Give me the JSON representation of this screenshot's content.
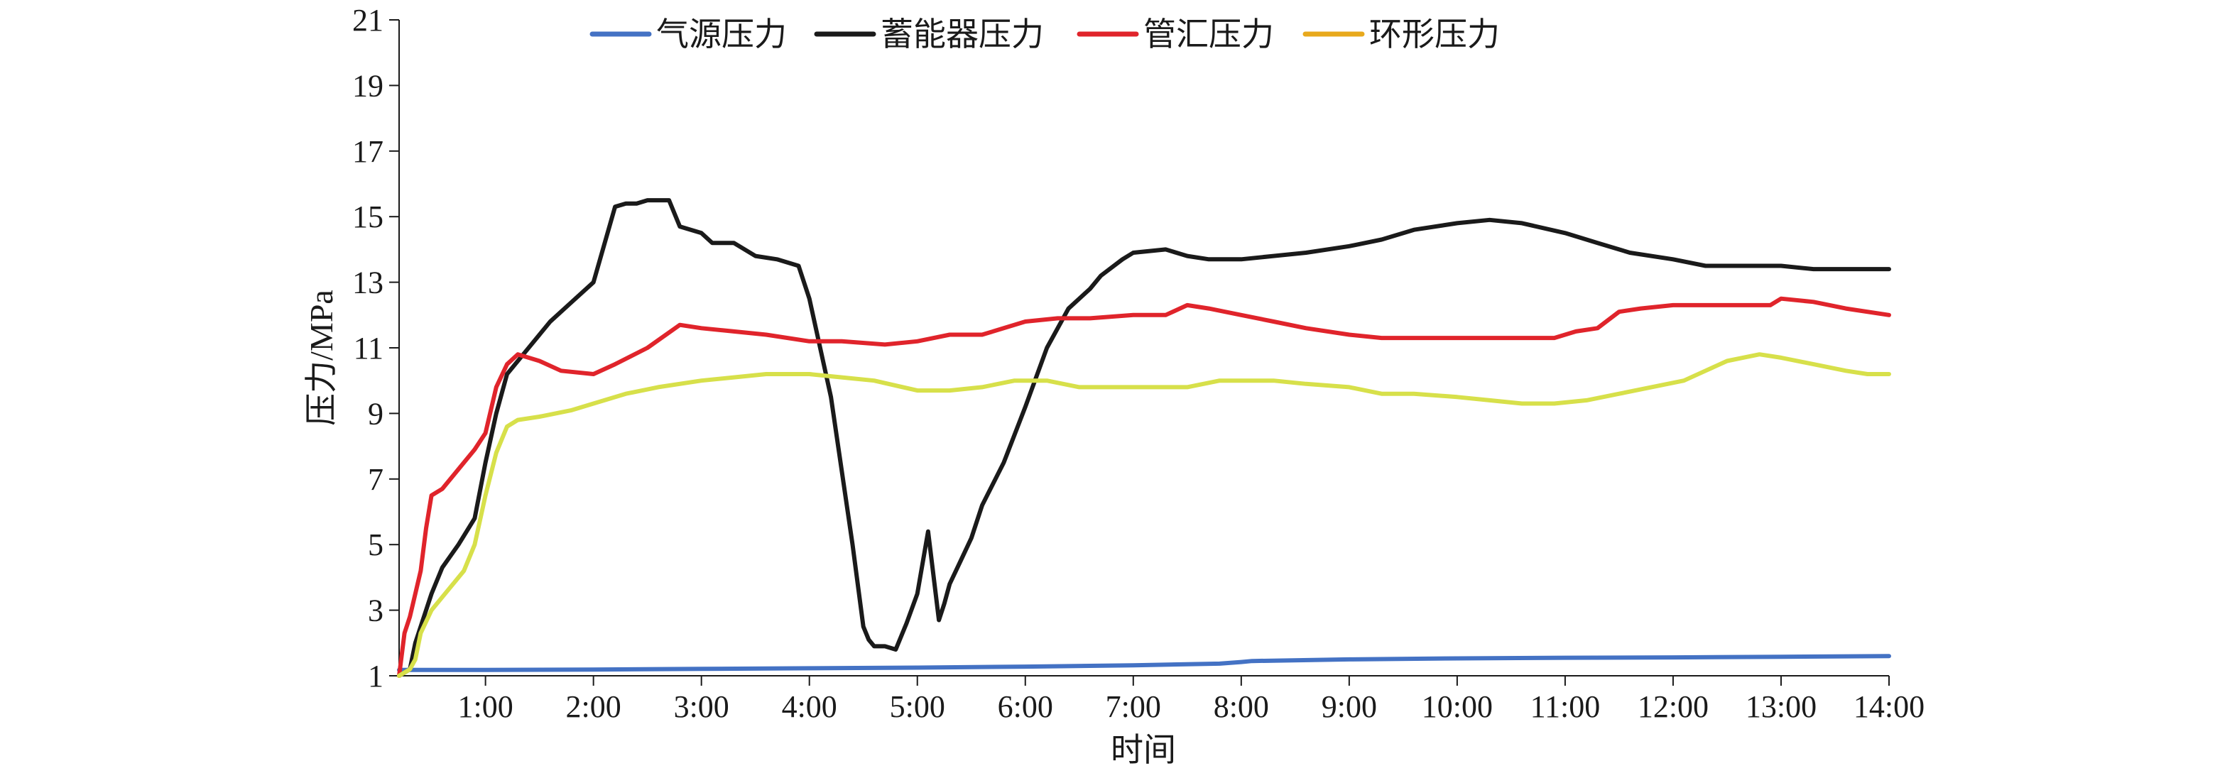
{
  "chart_data": {
    "type": "line",
    "title": "",
    "xlabel": "时间",
    "ylabel": "压力/MPa",
    "ylim": [
      1,
      21
    ],
    "xlim": [
      0.2,
      14.0
    ],
    "grid": false,
    "legend_position": "top",
    "y_ticks": [
      "1",
      "3",
      "5",
      "7",
      "9",
      "11",
      "13",
      "15",
      "17",
      "19",
      "21"
    ],
    "x_ticks": [
      "1:00",
      "2:00",
      "3:00",
      "4:00",
      "5:00",
      "6:00",
      "7:00",
      "8:00",
      "9:00",
      "10:00",
      "11:00",
      "12:00",
      "13:00",
      "14:00"
    ],
    "series": [
      {
        "name": "气源压力",
        "color": "#4472c4",
        "x": [
          0.2,
          1.0,
          2.0,
          3.0,
          4.0,
          5.0,
          6.0,
          7.0,
          7.8,
          8.0,
          8.1,
          9.0,
          10.0,
          11.0,
          12.0,
          13.0,
          14.0
        ],
        "y": [
          1.18,
          1.18,
          1.19,
          1.21,
          1.23,
          1.25,
          1.28,
          1.32,
          1.37,
          1.42,
          1.45,
          1.5,
          1.53,
          1.55,
          1.56,
          1.58,
          1.6
        ]
      },
      {
        "name": "蓄能器压力",
        "color": "#1a1a1a",
        "x": [
          0.2,
          0.3,
          0.35,
          0.5,
          0.6,
          0.75,
          0.9,
          1.0,
          1.1,
          1.2,
          1.3,
          1.4,
          1.6,
          1.8,
          2.0,
          2.2,
          2.3,
          2.4,
          2.5,
          2.7,
          2.8,
          3.0,
          3.1,
          3.3,
          3.5,
          3.7,
          3.9,
          4.0,
          4.2,
          4.4,
          4.5,
          4.55,
          4.6,
          4.7,
          4.8,
          4.9,
          5.0,
          5.1,
          5.2,
          5.25,
          5.3,
          5.4,
          5.5,
          5.6,
          5.8,
          6.0,
          6.2,
          6.3,
          6.4,
          6.6,
          6.7,
          6.9,
          7.0,
          7.3,
          7.5,
          7.7,
          8.0,
          8.3,
          8.6,
          9.0,
          9.3,
          9.6,
          10.0,
          10.3,
          10.6,
          11.0,
          11.3,
          11.6,
          12.0,
          12.3,
          12.6,
          13.0,
          13.3,
          13.6,
          14.0
        ],
        "y": [
          1.0,
          1.2,
          2.0,
          3.5,
          4.3,
          5.0,
          5.8,
          7.5,
          9.0,
          10.2,
          10.6,
          11.0,
          11.8,
          12.4,
          13.0,
          15.3,
          15.4,
          15.4,
          15.5,
          15.5,
          14.7,
          14.5,
          14.2,
          14.2,
          13.8,
          13.7,
          13.5,
          12.5,
          9.5,
          5.0,
          2.5,
          2.1,
          1.9,
          1.9,
          1.8,
          2.6,
          3.5,
          5.4,
          2.7,
          3.2,
          3.8,
          4.5,
          5.2,
          6.2,
          7.5,
          9.2,
          11.0,
          11.6,
          12.2,
          12.8,
          13.2,
          13.7,
          13.9,
          14.0,
          13.8,
          13.7,
          13.7,
          13.8,
          13.9,
          14.1,
          14.3,
          14.6,
          14.8,
          14.9,
          14.8,
          14.5,
          14.2,
          13.9,
          13.7,
          13.5,
          13.5,
          13.5,
          13.4,
          13.4,
          13.4
        ]
      },
      {
        "name": "管汇压力",
        "color": "#e0242b",
        "x": [
          0.2,
          0.25,
          0.3,
          0.4,
          0.45,
          0.5,
          0.6,
          0.8,
          0.9,
          1.0,
          1.1,
          1.2,
          1.3,
          1.5,
          1.7,
          2.0,
          2.2,
          2.5,
          2.8,
          3.0,
          3.3,
          3.6,
          4.0,
          4.3,
          4.7,
          5.0,
          5.3,
          5.6,
          5.8,
          6.0,
          6.3,
          6.6,
          7.0,
          7.3,
          7.5,
          7.7,
          8.0,
          8.3,
          8.6,
          9.0,
          9.3,
          9.6,
          10.0,
          10.3,
          10.6,
          10.9,
          11.1,
          11.3,
          11.5,
          11.7,
          12.0,
          12.3,
          12.6,
          12.9,
          13.0,
          13.3,
          13.6,
          14.0
        ],
        "y": [
          1.0,
          2.3,
          2.8,
          4.2,
          5.5,
          6.5,
          6.7,
          7.5,
          7.9,
          8.4,
          9.8,
          10.5,
          10.8,
          10.6,
          10.3,
          10.2,
          10.5,
          11.0,
          11.7,
          11.6,
          11.5,
          11.4,
          11.2,
          11.2,
          11.1,
          11.2,
          11.4,
          11.4,
          11.6,
          11.8,
          11.9,
          11.9,
          12.0,
          12.0,
          12.3,
          12.2,
          12.0,
          11.8,
          11.6,
          11.4,
          11.3,
          11.3,
          11.3,
          11.3,
          11.3,
          11.3,
          11.5,
          11.6,
          12.1,
          12.2,
          12.3,
          12.3,
          12.3,
          12.3,
          12.5,
          12.4,
          12.2,
          12.0
        ]
      },
      {
        "name": "环形压力",
        "color": "#e8a91c",
        "line_color": "#d7e04a",
        "x": [
          0.2,
          0.3,
          0.35,
          0.4,
          0.5,
          0.6,
          0.8,
          0.9,
          1.0,
          1.1,
          1.2,
          1.3,
          1.5,
          1.8,
          2.0,
          2.3,
          2.6,
          3.0,
          3.3,
          3.6,
          4.0,
          4.3,
          4.6,
          5.0,
          5.3,
          5.6,
          5.9,
          6.2,
          6.5,
          7.0,
          7.5,
          7.8,
          8.0,
          8.3,
          8.6,
          9.0,
          9.3,
          9.6,
          10.0,
          10.3,
          10.6,
          10.9,
          11.2,
          11.5,
          11.8,
          12.1,
          12.3,
          12.5,
          12.8,
          13.0,
          13.3,
          13.6,
          13.8,
          14.0
        ],
        "y": [
          1.0,
          1.2,
          1.5,
          2.3,
          3.0,
          3.4,
          4.2,
          5.0,
          6.5,
          7.8,
          8.6,
          8.8,
          8.9,
          9.1,
          9.3,
          9.6,
          9.8,
          10.0,
          10.1,
          10.2,
          10.2,
          10.1,
          10.0,
          9.7,
          9.7,
          9.8,
          10.0,
          10.0,
          9.8,
          9.8,
          9.8,
          10.0,
          10.0,
          10.0,
          9.9,
          9.8,
          9.6,
          9.6,
          9.5,
          9.4,
          9.3,
          9.3,
          9.4,
          9.6,
          9.8,
          10.0,
          10.3,
          10.6,
          10.8,
          10.7,
          10.5,
          10.3,
          10.2,
          10.2
        ]
      }
    ]
  }
}
